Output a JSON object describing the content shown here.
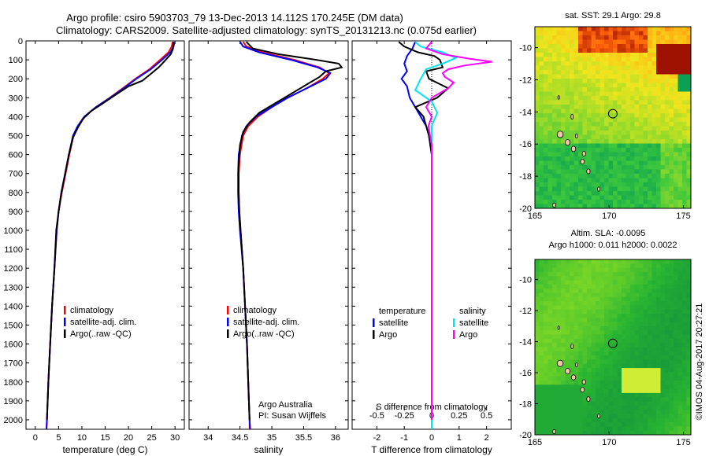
{
  "header": {
    "line1": "Argo profile: csiro 5903703_79 13-Dec-2013 14.112S 170.245E (DM data)",
    "line2": "Climatology: CARS2009. Satellite-adjusted climatology: synTS_20131213.nc (0.075d earlier)"
  },
  "sidebar_stamp": "©IMOS 04-Aug-2017 20:27:21",
  "colors": {
    "climatology": "#ff0000",
    "satellite": "#0000ff",
    "argo": "#000000",
    "salinity_sat": "#00e5ee",
    "salinity_argo": "#ff00ff"
  },
  "chart_data": [
    {
      "type": "line",
      "id": "temperature",
      "xlabel": "temperature (deg C)",
      "ylabel": "",
      "xlim": [
        -2,
        32
      ],
      "ylim": [
        2050,
        0
      ],
      "xticks": [
        0,
        5,
        10,
        15,
        20,
        25,
        30
      ],
      "yticks": [
        0,
        100,
        200,
        300,
        400,
        500,
        600,
        700,
        800,
        900,
        1000,
        1100,
        1200,
        1300,
        1400,
        1500,
        1600,
        1700,
        1800,
        1900,
        2000
      ],
      "legend": [
        "climatology",
        "satellite-adj. clim.",
        "Argo(..raw -QC)"
      ],
      "series": [
        {
          "name": "climatology",
          "color": "#ff0000",
          "points": [
            [
              29.5,
              5
            ],
            [
              29.3,
              30
            ],
            [
              28.6,
              60
            ],
            [
              26.8,
              100
            ],
            [
              24.5,
              150
            ],
            [
              21.5,
              200
            ],
            [
              18.8,
              250
            ],
            [
              16.0,
              300
            ],
            [
              13.0,
              350
            ],
            [
              10.6,
              400
            ],
            [
              9.2,
              450
            ],
            [
              8.2,
              500
            ],
            [
              7.3,
              600
            ],
            [
              6.5,
              700
            ],
            [
              5.7,
              800
            ],
            [
              5.0,
              900
            ],
            [
              4.6,
              1000
            ],
            [
              4.1,
              1200
            ],
            [
              3.6,
              1400
            ],
            [
              3.2,
              1600
            ],
            [
              2.8,
              1800
            ],
            [
              2.5,
              2000
            ],
            [
              2.4,
              2050
            ]
          ]
        },
        {
          "name": "satellite-adj. clim.",
          "color": "#0000ff",
          "points": [
            [
              29.9,
              5
            ],
            [
              29.7,
              30
            ],
            [
              29.0,
              60
            ],
            [
              27.2,
              100
            ],
            [
              24.8,
              150
            ],
            [
              21.7,
              200
            ],
            [
              19.0,
              250
            ],
            [
              16.1,
              300
            ],
            [
              13.0,
              350
            ],
            [
              10.5,
              400
            ],
            [
              9.1,
              450
            ],
            [
              8.1,
              500
            ],
            [
              7.2,
              600
            ],
            [
              6.4,
              700
            ],
            [
              5.6,
              800
            ],
            [
              5.0,
              900
            ],
            [
              4.6,
              1000
            ],
            [
              4.1,
              1200
            ],
            [
              3.6,
              1400
            ],
            [
              3.2,
              1600
            ],
            [
              2.8,
              1800
            ],
            [
              2.5,
              2000
            ],
            [
              2.4,
              2050
            ]
          ]
        },
        {
          "name": "Argo(..raw -QC)",
          "color": "#000000",
          "points": [
            [
              29.6,
              5
            ],
            [
              29.6,
              40
            ],
            [
              29.1,
              70
            ],
            [
              28.0,
              100
            ],
            [
              26.5,
              140
            ],
            [
              24.5,
              180
            ],
            [
              23.0,
              210
            ],
            [
              20.0,
              240
            ],
            [
              17.5,
              280
            ],
            [
              14.5,
              330
            ],
            [
              12.0,
              370
            ],
            [
              10.3,
              410
            ],
            [
              9.1,
              460
            ],
            [
              8.1,
              510
            ],
            [
              7.2,
              600
            ],
            [
              6.4,
              700
            ],
            [
              5.6,
              800
            ],
            [
              5.0,
              900
            ],
            [
              4.5,
              1000
            ],
            [
              4.1,
              1200
            ],
            [
              3.6,
              1400
            ],
            [
              3.2,
              1600
            ],
            [
              2.8,
              1800
            ],
            [
              2.5,
              2000
            ]
          ]
        }
      ]
    },
    {
      "type": "line",
      "id": "salinity",
      "xlabel": "salinity",
      "ylabel": "",
      "xlim": [
        33.7,
        36.2
      ],
      "ylim": [
        2050,
        0
      ],
      "xticks": [
        34,
        34.5,
        35,
        35.5,
        36
      ],
      "xticklabels": [
        "34",
        "34.5",
        "35",
        "35.5",
        "36"
      ],
      "legend": [
        "climatology",
        "satellite-adj. clim.",
        "Argo(..raw -QC)"
      ],
      "annotation": [
        "Argo Australia",
        "PI: Susan Wijffels"
      ],
      "series": [
        {
          "name": "climatology",
          "color": "#ff0000",
          "points": [
            [
              34.55,
              5
            ],
            [
              34.6,
              30
            ],
            [
              34.85,
              60
            ],
            [
              35.35,
              100
            ],
            [
              35.75,
              140
            ],
            [
              35.9,
              170
            ],
            [
              35.8,
              200
            ],
            [
              35.55,
              250
            ],
            [
              35.25,
              300
            ],
            [
              35.0,
              350
            ],
            [
              34.78,
              400
            ],
            [
              34.63,
              450
            ],
            [
              34.55,
              500
            ],
            [
              34.5,
              600
            ],
            [
              34.48,
              700
            ],
            [
              34.48,
              800
            ],
            [
              34.49,
              900
            ],
            [
              34.51,
              1000
            ],
            [
              34.55,
              1200
            ],
            [
              34.58,
              1400
            ],
            [
              34.61,
              1600
            ],
            [
              34.63,
              1800
            ],
            [
              34.65,
              2000
            ],
            [
              34.65,
              2050
            ]
          ]
        },
        {
          "name": "satellite-adj. clim.",
          "color": "#0000ff",
          "points": [
            [
              34.5,
              5
            ],
            [
              34.55,
              30
            ],
            [
              34.8,
              60
            ],
            [
              35.3,
              100
            ],
            [
              35.72,
              140
            ],
            [
              35.92,
              170
            ],
            [
              35.85,
              200
            ],
            [
              35.55,
              250
            ],
            [
              35.25,
              300
            ],
            [
              35.0,
              350
            ],
            [
              34.75,
              400
            ],
            [
              34.6,
              450
            ],
            [
              34.53,
              500
            ],
            [
              34.48,
              600
            ],
            [
              34.47,
              700
            ],
            [
              34.47,
              800
            ],
            [
              34.48,
              900
            ],
            [
              34.5,
              1000
            ],
            [
              34.55,
              1200
            ],
            [
              34.58,
              1400
            ],
            [
              34.61,
              1600
            ],
            [
              34.63,
              1800
            ],
            [
              34.65,
              2000
            ],
            [
              34.66,
              2050
            ]
          ]
        },
        {
          "name": "Argo(..raw -QC)",
          "color": "#000000",
          "points": [
            [
              34.6,
              5
            ],
            [
              34.7,
              40
            ],
            [
              35.1,
              70
            ],
            [
              35.7,
              100
            ],
            [
              36.05,
              120
            ],
            [
              36.1,
              140
            ],
            [
              35.85,
              160
            ],
            [
              35.75,
              190
            ],
            [
              35.55,
              230
            ],
            [
              35.3,
              280
            ],
            [
              35.05,
              330
            ],
            [
              34.8,
              380
            ],
            [
              34.65,
              430
            ],
            [
              34.55,
              480
            ],
            [
              34.5,
              550
            ],
            [
              34.48,
              650
            ],
            [
              34.48,
              800
            ],
            [
              34.49,
              900
            ],
            [
              34.51,
              1000
            ],
            [
              34.55,
              1200
            ],
            [
              34.58,
              1400
            ],
            [
              34.61,
              1600
            ],
            [
              34.63,
              1800
            ],
            [
              34.65,
              2000
            ]
          ]
        }
      ]
    },
    {
      "type": "line",
      "id": "difference",
      "xlabel": "T difference from climatology",
      "top_axis_label": "S difference from climatology",
      "xlim": [
        -2.9,
        2.9
      ],
      "ylim": [
        2050,
        0
      ],
      "xticks": [
        -2,
        -1,
        0,
        1,
        2
      ],
      "top_ticks": [
        -0.5,
        -0.25,
        0,
        0.25,
        0.5
      ],
      "top_ticklabels": [
        "-0.5",
        "-0.25",
        "0",
        "0.25",
        "0.5"
      ],
      "legend_headers": [
        "temperature",
        "salinity"
      ],
      "legend": [
        "satellite",
        "Argo",
        "satellite",
        "Argo"
      ],
      "series": [
        {
          "name": "satellite",
          "quantity": "temperature",
          "color": "#0000ff",
          "points": [
            [
              -0.6,
              5
            ],
            [
              -0.7,
              40
            ],
            [
              -0.9,
              80
            ],
            [
              -1.0,
              120
            ],
            [
              -0.9,
              160
            ],
            [
              -1.1,
              200
            ],
            [
              -0.9,
              240
            ],
            [
              -0.8,
              300
            ],
            [
              -0.6,
              350
            ],
            [
              -0.4,
              400
            ],
            [
              -0.2,
              450
            ],
            [
              -0.1,
              500
            ],
            [
              0.0,
              600
            ],
            [
              0.0,
              800
            ],
            [
              0.0,
              1000
            ],
            [
              0.0,
              1500
            ],
            [
              0.0,
              2000
            ],
            [
              0.0,
              2050
            ]
          ]
        },
        {
          "name": "Argo",
          "quantity": "temperature",
          "color": "#000000",
          "points": [
            [
              -1.2,
              5
            ],
            [
              -1.0,
              30
            ],
            [
              -0.5,
              60
            ],
            [
              0.1,
              80
            ],
            [
              0.3,
              100
            ],
            [
              0.4,
              140
            ],
            [
              -0.2,
              160
            ],
            [
              -0.1,
              200
            ],
            [
              0.6,
              250
            ],
            [
              0.2,
              300
            ],
            [
              -0.6,
              350
            ],
            [
              -0.3,
              400
            ],
            [
              -0.2,
              450
            ],
            [
              -0.1,
              500
            ],
            [
              0.0,
              600
            ],
            [
              0.0,
              800
            ],
            [
              0.0,
              1200
            ],
            [
              0.0,
              2000
            ]
          ]
        },
        {
          "name": "satellite",
          "quantity": "salinity",
          "color": "#00e5ee",
          "points": [
            [
              -0.15,
              5
            ],
            [
              -0.1,
              30
            ],
            [
              0.1,
              60
            ],
            [
              0.22,
              90
            ],
            [
              0.1,
              120
            ],
            [
              -0.05,
              150
            ],
            [
              -0.1,
              200
            ],
            [
              -0.15,
              260
            ],
            [
              0.0,
              320
            ],
            [
              0.05,
              380
            ],
            [
              0.0,
              450
            ],
            [
              0.0,
              550
            ],
            [
              0.0,
              700
            ],
            [
              0.0,
              1000
            ],
            [
              0.0,
              1500
            ],
            [
              0.0,
              2000
            ],
            [
              0.0,
              2050
            ]
          ]
        },
        {
          "name": "Argo",
          "quantity": "salinity",
          "color": "#ff00ff",
          "points": [
            [
              0.0,
              5
            ],
            [
              -0.05,
              40
            ],
            [
              0.1,
              70
            ],
            [
              0.35,
              95
            ],
            [
              0.55,
              110
            ],
            [
              0.3,
              130
            ],
            [
              0.15,
              150
            ],
            [
              0.1,
              170
            ],
            [
              0.12,
              190
            ],
            [
              0.2,
              220
            ],
            [
              0.15,
              250
            ],
            [
              0.0,
              300
            ],
            [
              -0.05,
              350
            ],
            [
              0.0,
              400
            ],
            [
              -0.03,
              450
            ],
            [
              0.0,
              550
            ],
            [
              0.0,
              800
            ],
            [
              0.0,
              1500
            ],
            [
              0.0,
              2000
            ]
          ]
        }
      ]
    },
    {
      "type": "heatmap",
      "id": "sst_map",
      "title": "sat. SST: 29.1 Argo: 29.8",
      "xlim": [
        165,
        175.5
      ],
      "ylim": [
        -20,
        -8.7
      ],
      "xticks": [
        165,
        170,
        175
      ],
      "yticks": [
        -10,
        -12,
        -14,
        -16,
        -18,
        -20
      ],
      "profile_location": {
        "lon": 170.245,
        "lat": -14.112
      },
      "palette": "sst"
    },
    {
      "type": "heatmap",
      "id": "sla_map",
      "title": "Altim. SLA: -0.0095",
      "subtitle": "Argo h1000: 0.011 h2000: 0.0022",
      "xlim": [
        165,
        175.5
      ],
      "ylim": [
        -20,
        -8.7
      ],
      "xticks": [
        165,
        170,
        175
      ],
      "yticks": [
        -10,
        -12,
        -14,
        -16,
        -18,
        -20
      ],
      "profile_location": {
        "lon": 170.245,
        "lat": -14.112
      },
      "palette": "sla"
    }
  ]
}
